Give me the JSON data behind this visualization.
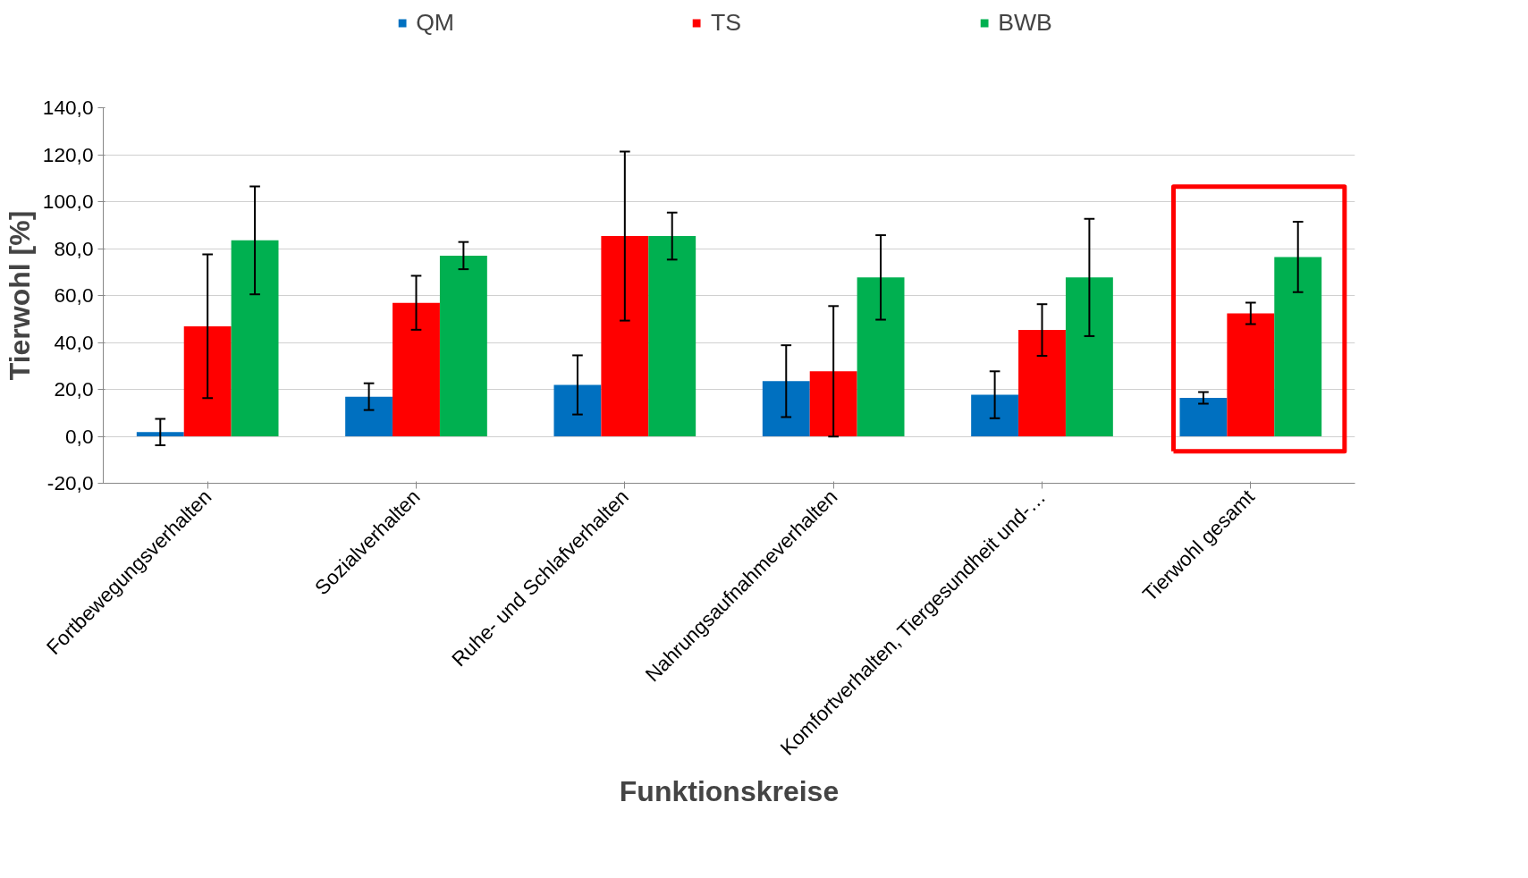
{
  "chart_data": {
    "type": "bar",
    "ylabel": "Tierwohl [%]",
    "xlabel": "Funktionskreise",
    "categories": [
      "Fortbewegungsverhalten",
      "Sozialverhalten",
      "Ruhe- und Schlafverhalten",
      "Nahrungsaufnahmeverhalten",
      "Komfortverhalten, Tiergesundheit und-…",
      "Tierwohl gesamt"
    ],
    "series": [
      {
        "name": "QM",
        "color": "#0070c0",
        "values": [
          1.8,
          16.9,
          21.9,
          23.5,
          17.7,
          16.4
        ],
        "errors": [
          5.6,
          5.7,
          12.6,
          15.3,
          10,
          2.5
        ]
      },
      {
        "name": "TS",
        "color": "#ff0000",
        "values": [
          46.9,
          56.9,
          85.3,
          27.7,
          45.3,
          52.4
        ],
        "errors": [
          30.6,
          11.5,
          36,
          27.8,
          11,
          4.6
        ]
      },
      {
        "name": "BWB",
        "color": "#00b050",
        "values": [
          83.5,
          77.0,
          85.3,
          67.7,
          67.7,
          76.4
        ],
        "errors": [
          23,
          5.8,
          10,
          18,
          25,
          15
        ]
      }
    ],
    "ylim": [
      -20,
      140
    ],
    "yticks": [
      {
        "value": -20,
        "label": "-20,0"
      },
      {
        "value": 0,
        "label": "0,0"
      },
      {
        "value": 20,
        "label": "20,0"
      },
      {
        "value": 40,
        "label": "40,0"
      },
      {
        "value": 60,
        "label": "60,0"
      },
      {
        "value": 80,
        "label": "80,0"
      },
      {
        "value": 100,
        "label": "100,0"
      },
      {
        "value": 120,
        "label": "120,0"
      },
      {
        "value": 140,
        "label": "140,0"
      }
    ],
    "grid": "y",
    "legend": "top"
  }
}
